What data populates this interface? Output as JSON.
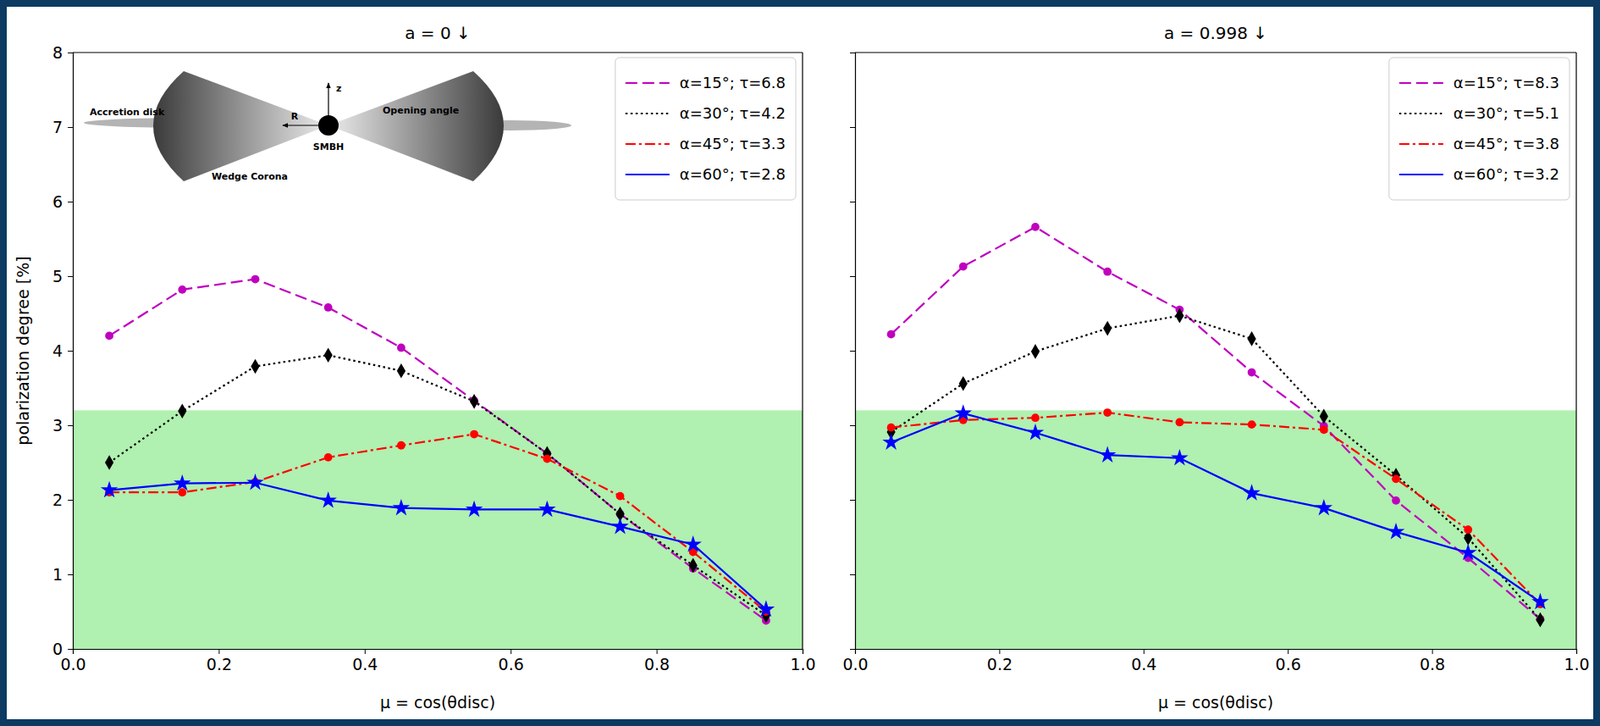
{
  "chart_data": [
    {
      "type": "line",
      "title": "a = 0 ↓",
      "x_label": "μ = cos(θdisc)",
      "y_label": "polarization degree [%]",
      "x": [
        0.05,
        0.15,
        0.25,
        0.35,
        0.45,
        0.55,
        0.65,
        0.75,
        0.85,
        0.95
      ],
      "series": [
        {
          "name": "α=15°; τ=6.8",
          "color": "#bf00bf",
          "line_style": "dashed",
          "marker": "circle",
          "values": [
            4.2,
            4.82,
            4.96,
            4.58,
            4.04,
            3.33,
            2.62,
            1.81,
            1.08,
            0.38
          ]
        },
        {
          "name": "α=30°; τ=4.2",
          "color": "#000000",
          "line_style": "dotted",
          "marker": "diamond",
          "values": [
            2.5,
            3.19,
            3.79,
            3.94,
            3.73,
            3.32,
            2.62,
            1.81,
            1.12,
            0.45
          ]
        },
        {
          "name": "α=45°; τ=3.3",
          "color": "#ff0000",
          "line_style": "dashdot",
          "marker": "circle",
          "values": [
            2.1,
            2.1,
            2.24,
            2.57,
            2.73,
            2.88,
            2.55,
            2.05,
            1.3,
            0.5
          ]
        },
        {
          "name": "α=60°; τ=2.8",
          "color": "#0000ff",
          "line_style": "solid",
          "marker": "star",
          "values": [
            2.13,
            2.22,
            2.23,
            1.99,
            1.89,
            1.87,
            1.87,
            1.64,
            1.4,
            0.53
          ]
        }
      ],
      "band": [
        0,
        3.2
      ],
      "xlim": [
        0,
        1
      ],
      "xticks": [
        {
          "value": 0,
          "label": "0.0"
        },
        {
          "value": 0.2,
          "label": "0.2"
        },
        {
          "value": 0.4,
          "label": "0.4"
        },
        {
          "value": 0.6,
          "label": "0.6"
        },
        {
          "value": 0.8,
          "label": "0.8"
        },
        {
          "value": 1,
          "label": "1.0"
        }
      ],
      "ylim": [
        0,
        8
      ],
      "yticks": [
        0,
        1,
        2,
        3,
        4,
        5,
        6,
        7,
        8
      ],
      "legend": "upper right",
      "annotations": [
        "Accretion disk",
        "R",
        "z",
        "Opening angle",
        "SMBH",
        "Wedge Corona"
      ]
    },
    {
      "type": "line",
      "title": "a = 0.998 ↓",
      "x_label": "μ = cos(θdisc)",
      "x": [
        0.05,
        0.15,
        0.25,
        0.35,
        0.45,
        0.55,
        0.65,
        0.75,
        0.85,
        0.95
      ],
      "series": [
        {
          "name": "α=15°; τ=8.3",
          "color": "#bf00bf",
          "line_style": "dashed",
          "marker": "circle",
          "values": [
            4.22,
            5.13,
            5.66,
            5.06,
            4.55,
            3.71,
            2.99,
            1.99,
            1.22,
            0.4
          ]
        },
        {
          "name": "α=30°; τ=5.1",
          "color": "#000000",
          "line_style": "dotted",
          "marker": "diamond",
          "values": [
            2.91,
            3.56,
            3.99,
            4.3,
            4.47,
            4.16,
            3.12,
            2.33,
            1.49,
            0.39
          ]
        },
        {
          "name": "α=45°; τ=3.8",
          "color": "#ff0000",
          "line_style": "dashdot",
          "marker": "circle",
          "values": [
            2.97,
            3.07,
            3.1,
            3.17,
            3.04,
            3.01,
            2.94,
            2.28,
            1.6,
            0.6
          ]
        },
        {
          "name": "α=60°; τ=3.2",
          "color": "#0000ff",
          "line_style": "solid",
          "marker": "star",
          "values": [
            2.77,
            3.16,
            2.9,
            2.6,
            2.56,
            2.09,
            1.89,
            1.57,
            1.29,
            0.63
          ]
        }
      ],
      "band": [
        0,
        3.2
      ],
      "xlim": [
        0,
        1
      ],
      "xticks": [
        {
          "value": 0,
          "label": "0.0"
        },
        {
          "value": 0.2,
          "label": "0.2"
        },
        {
          "value": 0.4,
          "label": "0.4"
        },
        {
          "value": 0.6,
          "label": "0.6"
        },
        {
          "value": 0.8,
          "label": "0.8"
        },
        {
          "value": 1,
          "label": "1.0"
        }
      ],
      "ylim": [
        0,
        8
      ],
      "yticks": [
        0,
        1,
        2,
        3,
        4,
        5,
        6,
        7,
        8
      ],
      "tick_labels": "x",
      "legend": "upper right"
    }
  ]
}
